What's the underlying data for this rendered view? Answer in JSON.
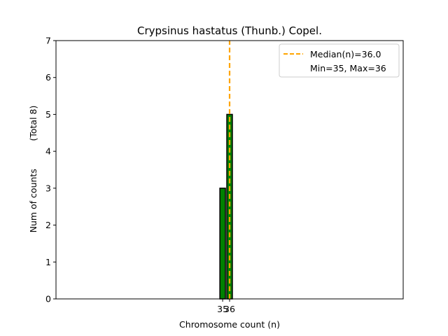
{
  "chart_data": {
    "type": "bar",
    "title": "Crypsinus hastatus (Thunb.) Copel.",
    "xlabel": "Chromosome count (n)",
    "ylabel": "Num of counts",
    "ylabel_secondary": "(Total 8)",
    "ylim": [
      0,
      7
    ],
    "xlim": [
      11,
      61
    ],
    "yticks": [
      0,
      1,
      2,
      3,
      4,
      5,
      6,
      7
    ],
    "xticks": [
      35,
      36
    ],
    "bar_width": 0.8,
    "bars": [
      {
        "x": 35,
        "value": 3
      },
      {
        "x": 36,
        "value": 5
      }
    ],
    "bar_color": "#008000",
    "median_line": {
      "x": 36.0,
      "color": "#FFA500",
      "label": "Median(n)=36.0"
    },
    "legend": {
      "position": "top-right",
      "entries": [
        "Median(n)=36.0",
        "Min=35, Max=36"
      ]
    },
    "grid": false
  }
}
